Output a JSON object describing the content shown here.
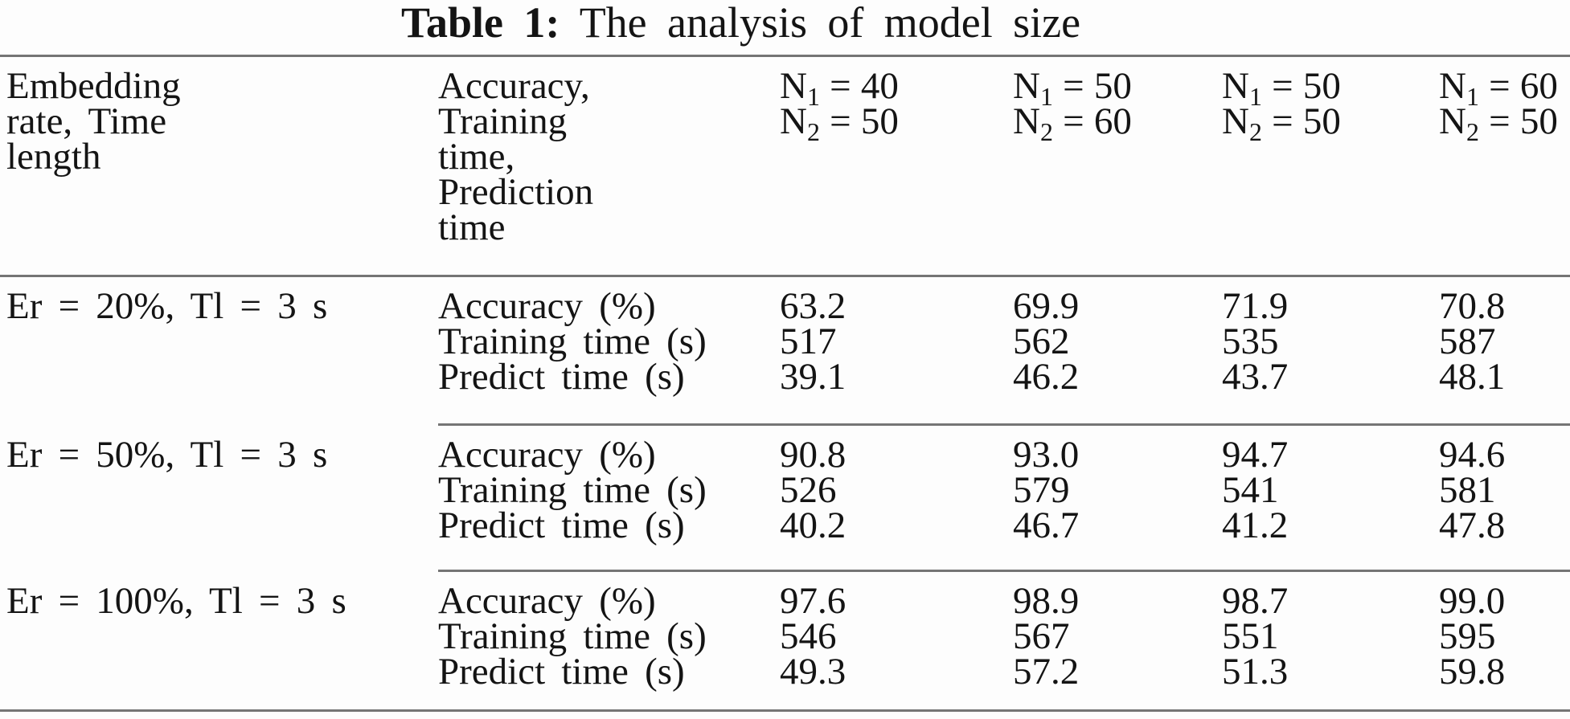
{
  "title": {
    "prefix": "Table 1:",
    "text": "The analysis of model size"
  },
  "colors": {
    "text": "#141414",
    "rule": "#757575",
    "background": "#fdfdfd"
  },
  "header": {
    "col1_lines": [
      "Embedding",
      "rate, Time",
      "length"
    ],
    "col2_lines": [
      "Accuracy,",
      "Training",
      "time,",
      "Prediction",
      "time"
    ],
    "n_symbol": "N",
    "equals_sign": "=",
    "model_columns": [
      {
        "sub1": "1",
        "n1": "40",
        "sub2": "2",
        "n2": "50"
      },
      {
        "sub1": "1",
        "n1": "50",
        "sub2": "2",
        "n2": "60"
      },
      {
        "sub1": "1",
        "n1": "50",
        "sub2": "2",
        "n2": "50"
      },
      {
        "sub1": "1",
        "n1": "60",
        "sub2": "2",
        "n2": "50"
      }
    ]
  },
  "table": {
    "groups": [
      {
        "label": "Er = 20%, Tl = 3 s",
        "rows": [
          {
            "metric": "Accuracy (%)",
            "values": [
              "63.2",
              "69.9",
              "71.9",
              "70.8"
            ]
          },
          {
            "metric": "Training time (s)",
            "values": [
              "517",
              "562",
              "535",
              "587"
            ]
          },
          {
            "metric": "Predict time (s)",
            "values": [
              "39.1",
              "46.2",
              "43.7",
              "48.1"
            ]
          }
        ]
      },
      {
        "label": "Er = 50%, Tl = 3 s",
        "rows": [
          {
            "metric": "Accuracy (%)",
            "values": [
              "90.8",
              "93.0",
              "94.7",
              "94.6"
            ]
          },
          {
            "metric": "Training time (s)",
            "values": [
              "526",
              "579",
              "541",
              "581"
            ]
          },
          {
            "metric": "Predict time (s)",
            "values": [
              "40.2",
              "46.7",
              "41.2",
              "47.8"
            ]
          }
        ]
      },
      {
        "label": "Er = 100%, Tl = 3 s",
        "rows": [
          {
            "metric": "Accuracy (%)",
            "values": [
              "97.6",
              "98.9",
              "98.7",
              "99.0"
            ]
          },
          {
            "metric": "Training time (s)",
            "values": [
              "546",
              "567",
              "551",
              "595"
            ]
          },
          {
            "metric": "Predict time (s)",
            "values": [
              "49.3",
              "57.2",
              "51.3",
              "59.8"
            ]
          }
        ]
      }
    ]
  }
}
